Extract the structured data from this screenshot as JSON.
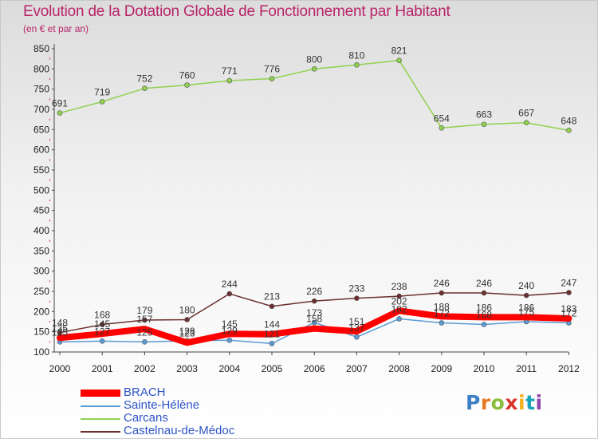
{
  "title": "Evolution de la Dotation Globale de Fonctionnement par Habitant",
  "subtitle": "(en € et par an)",
  "brand": {
    "letters": [
      "P",
      "r",
      "o",
      "x",
      "i",
      "t",
      "i"
    ],
    "colors": [
      "#3b7fc4",
      "#e87722",
      "#8bbd3d",
      "#d9342b",
      "#f2b01e",
      "#1aa3b8",
      "#8e44ad"
    ]
  },
  "colors": {
    "title": "#b8256a",
    "axis_text": "#222222",
    "value_text": "#333333",
    "legend_text": "#2f55c8"
  },
  "chart_data": {
    "type": "line",
    "title": "Evolution de la Dotation Globale de Fonctionnement par Habitant",
    "subtitle": "(en € et par an)",
    "xlabel": "",
    "ylabel": "",
    "x": [
      "2000",
      "2001",
      "2002",
      "2003",
      "2004",
      "2005",
      "2006",
      "2007",
      "2008",
      "2009",
      "2010",
      "2011",
      "2012"
    ],
    "ylim": [
      100,
      850
    ],
    "yticks": [
      100,
      150,
      200,
      250,
      300,
      350,
      400,
      450,
      500,
      550,
      600,
      650,
      700,
      750,
      800,
      850
    ],
    "grid": false,
    "legend_position": "bottom-left",
    "series": [
      {
        "name": "BRACH",
        "color": "#ff0000",
        "width": 8,
        "marker": false,
        "values": [
          135,
          145,
          157,
          123,
          145,
          144,
          158,
          151,
          202,
          188,
          186,
          186,
          183
        ],
        "labels": [
          "135",
          "145",
          "157",
          "123",
          "145",
          "144",
          "158",
          "151",
          "202",
          "188",
          "186",
          "186",
          "183"
        ]
      },
      {
        "name": "Sainte-Hélène",
        "color": "#5b9bd5",
        "width": 1.5,
        "marker": true,
        "values": [
          125,
          127,
          125,
          128,
          129,
          121,
          173,
          137,
          182,
          172,
          168,
          175,
          172
        ],
        "labels": [
          "125",
          "127",
          "125",
          "128",
          "129",
          "121",
          "173",
          "137",
          "182",
          "172",
          "168",
          "175",
          "172"
        ]
      },
      {
        "name": "Carcans",
        "color": "#8fd14f",
        "width": 1.5,
        "marker": true,
        "values": [
          691,
          719,
          752,
          760,
          771,
          776,
          800,
          810,
          821,
          654,
          663,
          667,
          648
        ],
        "labels": [
          "691",
          "719",
          "752",
          "760",
          "771",
          "776",
          "800",
          "810",
          "821",
          "654",
          "663",
          "667",
          "648"
        ]
      },
      {
        "name": "Castelnau-de-Médoc",
        "color": "#6b2f2f",
        "width": 1.5,
        "marker": true,
        "values": [
          148,
          168,
          179,
          180,
          244,
          213,
          226,
          233,
          238,
          246,
          246,
          240,
          247
        ],
        "labels": [
          "148",
          "168",
          "179",
          "180",
          "244",
          "213",
          "226",
          "233",
          "238",
          "246",
          "246",
          "240",
          "247"
        ]
      }
    ]
  }
}
